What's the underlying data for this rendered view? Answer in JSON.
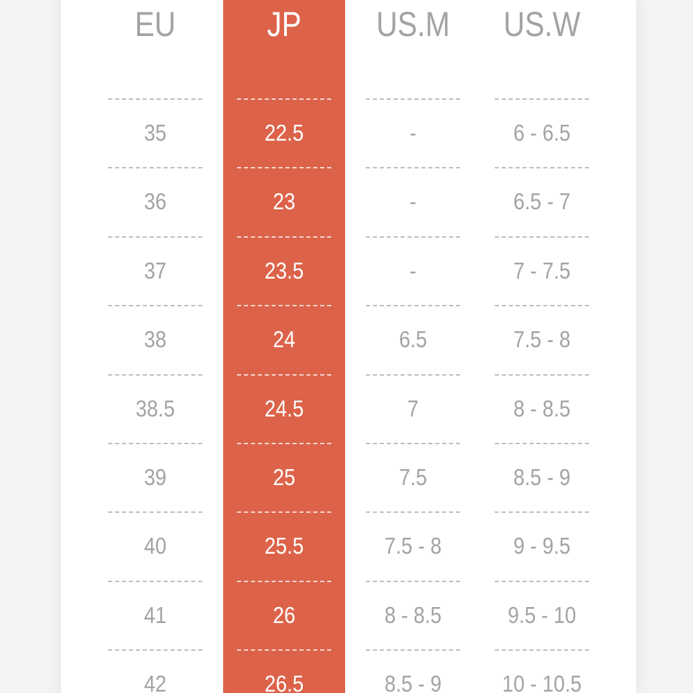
{
  "table": {
    "headers": [
      "EU",
      "JP",
      "US.M",
      "US.W"
    ],
    "rows": [
      [
        "35",
        "22.5",
        "-",
        "6 - 6.5"
      ],
      [
        "36",
        "23",
        "-",
        "6.5 - 7"
      ],
      [
        "37",
        "23.5",
        "-",
        "7 - 7.5"
      ],
      [
        "38",
        "24",
        "6.5",
        "7.5 - 8"
      ],
      [
        "38.5",
        "24.5",
        "7",
        "8 - 8.5"
      ],
      [
        "39",
        "25",
        "7.5",
        "8.5 - 9"
      ],
      [
        "40",
        "25.5",
        "7.5 - 8",
        "9 - 9.5"
      ],
      [
        "41",
        "26",
        "8 - 8.5",
        "9.5 - 10"
      ],
      [
        "42",
        "26.5",
        "8.5 - 9",
        "10 - 10.5"
      ]
    ]
  }
}
